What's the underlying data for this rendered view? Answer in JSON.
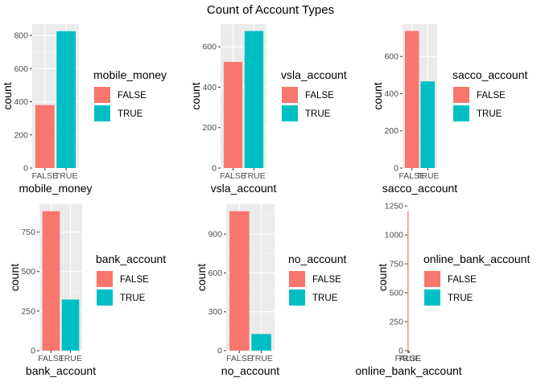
{
  "figure_title": "Count of Account Types",
  "colors": {
    "false": "#F8766D",
    "true": "#00BFC4",
    "panel": "#EBEBEB",
    "grid_major": "#FFFFFF",
    "grid_minor": "#F5F5F5",
    "axis_text": "#4D4D4D"
  },
  "chart_data": [
    {
      "type": "bar",
      "categories": [
        "FALSE",
        "TRUE"
      ],
      "values": [
        380,
        825
      ],
      "title": "",
      "xlabel": "mobile_money",
      "ylabel": "count",
      "ylim": [
        0,
        868
      ],
      "yticks": [
        0,
        200,
        400,
        600,
        800
      ],
      "legend_title": "mobile_money",
      "legend_labels": [
        "FALSE",
        "TRUE"
      ],
      "legend_position": "right"
    },
    {
      "type": "bar",
      "categories": [
        "FALSE",
        "TRUE"
      ],
      "values": [
        525,
        678
      ],
      "title": "",
      "xlabel": "vsla_account",
      "ylabel": "count",
      "ylim": [
        0,
        712
      ],
      "yticks": [
        0,
        200,
        400,
        600
      ],
      "legend_title": "vsla_account",
      "legend_labels": [
        "FALSE",
        "TRUE"
      ],
      "legend_position": "right"
    },
    {
      "type": "bar",
      "categories": [
        "FALSE",
        "TRUE"
      ],
      "values": [
        737,
        466
      ],
      "title": "",
      "xlabel": "sacco_account",
      "ylabel": "count",
      "ylim": [
        0,
        774
      ],
      "yticks": [
        0,
        200,
        400,
        600
      ],
      "legend_title": "sacco_account",
      "legend_labels": [
        "FALSE",
        "TRUE"
      ],
      "legend_position": "right"
    },
    {
      "type": "bar",
      "categories": [
        "FALSE",
        "TRUE"
      ],
      "values": [
        882,
        323
      ],
      "title": "",
      "xlabel": "bank_account",
      "ylabel": "count",
      "ylim": [
        0,
        926
      ],
      "yticks": [
        0,
        250,
        500,
        750
      ],
      "legend_title": "bank_account",
      "legend_labels": [
        "FALSE",
        "TRUE"
      ],
      "legend_position": "right"
    },
    {
      "type": "bar",
      "categories": [
        "FALSE",
        "TRUE"
      ],
      "values": [
        1077,
        128
      ],
      "title": "",
      "xlabel": "no_account",
      "ylabel": "count",
      "ylim": [
        0,
        1131
      ],
      "yticks": [
        0,
        300,
        600,
        900
      ],
      "legend_title": "no_account",
      "legend_labels": [
        "FALSE",
        "TRUE"
      ],
      "legend_position": "right"
    },
    {
      "type": "bar",
      "categories": [
        "FALSE",
        "TRUE"
      ],
      "values": [
        1205,
        0
      ],
      "title": "",
      "xlabel": "online_bank_account",
      "ylabel": "count",
      "ylim": [
        0,
        1265
      ],
      "yticks": [
        0,
        250,
        500,
        750,
        1000,
        1250
      ],
      "legend_title": "online_bank_account",
      "legend_labels": [
        "FALSE",
        "TRUE"
      ],
      "legend_position": "right"
    }
  ]
}
